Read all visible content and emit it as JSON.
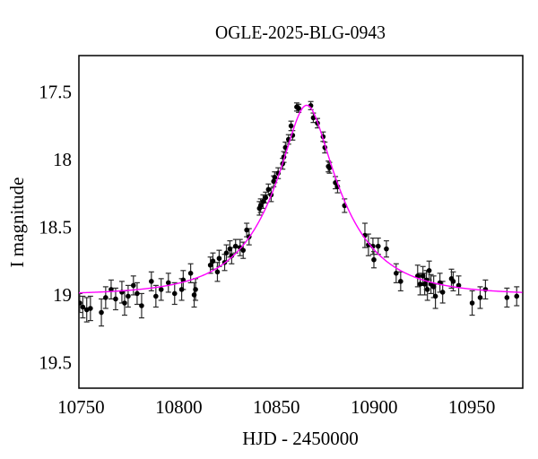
{
  "title": "OGLE-2025-BLG-0943",
  "chart_data": {
    "type": "scatter",
    "title": "OGLE-2025-BLG-0943",
    "xlabel": "HJD - 2450000",
    "ylabel": "I magnitude",
    "grid": false,
    "legend": "none",
    "x_axis": {
      "min": 10748.9,
      "max": 10976.1,
      "major_tick_step": 50,
      "minor_tick_step": 10,
      "major_ticks": [
        10750,
        10800,
        10850,
        10900,
        10950
      ],
      "tick_labels": [
        "10750",
        "10800",
        "10850",
        "10900",
        "10950"
      ]
    },
    "y_axis": {
      "min": 17.23,
      "max": 19.69,
      "inverted": true,
      "major_tick_step": 0.5,
      "minor_tick_step": 0.1,
      "major_ticks": [
        17.5,
        18.0,
        18.5,
        19.0,
        19.5
      ],
      "tick_labels": [
        "17.5",
        "18",
        "18.5",
        "19",
        "19.5"
      ]
    },
    "model_curve": {
      "type": "paczynski",
      "t0": 10865.5,
      "tE": 37.0,
      "u0": 0.283,
      "I0": 19.0
    },
    "colors": {
      "model_curve": "#ff00ff",
      "data_points": "#000000",
      "error_bars": "#2b2b2b",
      "frame": "#000000",
      "background": "#ffffff",
      "text": "#000000"
    },
    "points_columns": [
      "hjd_minus_2450000",
      "I_mag",
      "err_mag"
    ],
    "points": [
      [
        10749.3,
        19.06,
        0.07
      ],
      [
        10750.9,
        19.09,
        0.08
      ],
      [
        10752.9,
        19.11,
        0.09
      ],
      [
        10754.8,
        19.1,
        0.09
      ],
      [
        10760.4,
        19.13,
        0.1
      ],
      [
        10762.6,
        19.02,
        0.08
      ],
      [
        10765.4,
        18.96,
        0.07
      ],
      [
        10767.7,
        19.03,
        0.08
      ],
      [
        10770.9,
        18.98,
        0.08
      ],
      [
        10772.3,
        19.06,
        0.09
      ],
      [
        10774.1,
        19.01,
        0.08
      ],
      [
        10776.8,
        18.93,
        0.07
      ],
      [
        10778.7,
        18.99,
        0.08
      ],
      [
        10781.0,
        19.08,
        0.09
      ],
      [
        10786.0,
        18.9,
        0.07
      ],
      [
        10788.3,
        19.01,
        0.08
      ],
      [
        10791.0,
        18.96,
        0.08
      ],
      [
        10794.7,
        18.91,
        0.07
      ],
      [
        10797.9,
        18.99,
        0.08
      ],
      [
        10801.5,
        18.96,
        0.08
      ],
      [
        10802.3,
        18.89,
        0.07
      ],
      [
        10806.1,
        18.84,
        0.07
      ],
      [
        10807.9,
        19.0,
        0.09
      ],
      [
        10808.6,
        18.96,
        0.08
      ],
      [
        10816.2,
        18.78,
        0.06
      ],
      [
        10817.5,
        18.75,
        0.06
      ],
      [
        10819.8,
        18.83,
        0.07
      ],
      [
        10820.7,
        18.73,
        0.06
      ],
      [
        10823.5,
        18.76,
        0.06
      ],
      [
        10824.4,
        18.69,
        0.06
      ],
      [
        10826.2,
        18.66,
        0.06
      ],
      [
        10827.1,
        18.71,
        0.06
      ],
      [
        10829.1,
        18.64,
        0.05
      ],
      [
        10831.4,
        18.65,
        0.06
      ],
      [
        10833.0,
        18.67,
        0.06
      ],
      [
        10834.8,
        18.52,
        0.05
      ],
      [
        10836.0,
        18.57,
        0.06
      ],
      [
        10841.3,
        18.36,
        0.05
      ],
      [
        10841.9,
        18.34,
        0.05
      ],
      [
        10843.2,
        18.31,
        0.05
      ],
      [
        10844.5,
        18.28,
        0.04
      ],
      [
        10845.9,
        18.22,
        0.04
      ],
      [
        10847.3,
        18.26,
        0.05
      ],
      [
        10848.6,
        18.16,
        0.04
      ],
      [
        10849.1,
        18.13,
        0.04
      ],
      [
        10850.9,
        18.1,
        0.04
      ],
      [
        10853.2,
        18.03,
        0.04
      ],
      [
        10853.8,
        17.98,
        0.04
      ],
      [
        10854.6,
        17.91,
        0.04
      ],
      [
        10856.2,
        17.85,
        0.035
      ],
      [
        10857.5,
        17.75,
        0.035
      ],
      [
        10858.3,
        17.82,
        0.035
      ],
      [
        10860.4,
        17.61,
        0.03
      ],
      [
        10861.4,
        17.62,
        0.03
      ],
      [
        10867.6,
        17.6,
        0.03
      ],
      [
        10868.9,
        17.69,
        0.035
      ],
      [
        10871.0,
        17.73,
        0.035
      ],
      [
        10873.9,
        17.83,
        0.035
      ],
      [
        10874.8,
        17.91,
        0.04
      ],
      [
        10876.6,
        18.05,
        0.04
      ],
      [
        10877.2,
        18.06,
        0.04
      ],
      [
        10880.2,
        18.17,
        0.045
      ],
      [
        10881.3,
        18.2,
        0.045
      ],
      [
        10884.9,
        18.34,
        0.05
      ],
      [
        10895.3,
        18.56,
        0.09
      ],
      [
        10897.1,
        18.63,
        0.08
      ],
      [
        10899.4,
        18.64,
        0.06
      ],
      [
        10899.9,
        18.74,
        0.06
      ],
      [
        10902.1,
        18.64,
        0.06
      ],
      [
        10906.3,
        18.66,
        0.06
      ],
      [
        10911.3,
        18.84,
        0.07
      ],
      [
        10913.6,
        18.9,
        0.07
      ],
      [
        10922.3,
        18.86,
        0.08
      ],
      [
        10923.6,
        18.92,
        0.08
      ],
      [
        10925.0,
        18.86,
        0.07
      ],
      [
        10925.9,
        18.92,
        0.08
      ],
      [
        10926.8,
        18.89,
        0.07
      ],
      [
        10927.3,
        18.96,
        0.08
      ],
      [
        10928.2,
        18.82,
        0.07
      ],
      [
        10929.1,
        18.92,
        0.07
      ],
      [
        10930.5,
        18.94,
        0.08
      ],
      [
        10931.4,
        19.01,
        0.09
      ],
      [
        10933.7,
        18.91,
        0.07
      ],
      [
        10935.1,
        18.98,
        0.08
      ],
      [
        10939.6,
        18.88,
        0.07
      ],
      [
        10940.5,
        18.9,
        0.07
      ],
      [
        10943.3,
        18.93,
        0.07
      ],
      [
        10950.2,
        19.06,
        0.09
      ],
      [
        10954.3,
        19.02,
        0.08
      ],
      [
        10957.0,
        18.96,
        0.07
      ],
      [
        10968.0,
        19.02,
        0.07
      ],
      [
        10973.0,
        19.01,
        0.07
      ]
    ]
  }
}
